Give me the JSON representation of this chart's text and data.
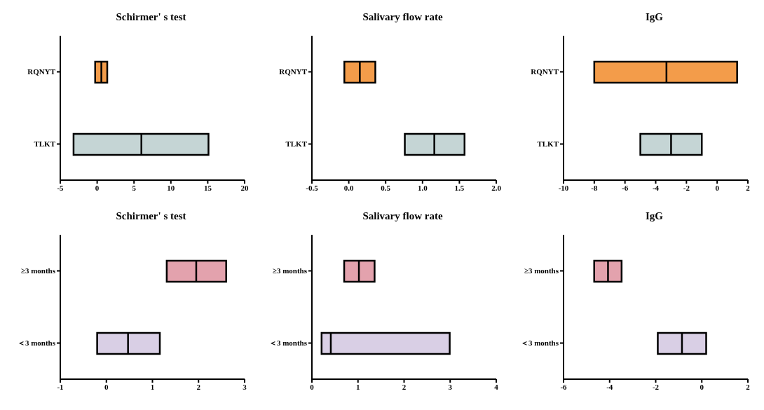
{
  "chart_data": [
    {
      "type": "box",
      "title": "Schirmer' s test",
      "orientation": "horizontal",
      "categories": [
        "RQNYT",
        "TLKT"
      ],
      "colors": [
        "#f39c4a",
        "#c5d5d5"
      ],
      "xlim": [
        -5,
        20
      ],
      "xticks": [
        -5,
        0,
        5,
        10,
        15,
        20
      ],
      "grid": false,
      "boxes": [
        {
          "low": -0.27,
          "q1": -0.27,
          "median": 0.57,
          "q3": 1.37,
          "high": 1.37
        },
        {
          "low": -3.2,
          "q1": -3.2,
          "median": 6.0,
          "q3": 15.1,
          "high": 15.1
        }
      ]
    },
    {
      "type": "box",
      "title": "Salivary flow rate",
      "orientation": "horizontal",
      "categories": [
        "RQNYT",
        "TLKT"
      ],
      "colors": [
        "#f39c4a",
        "#c5d5d5"
      ],
      "xlim": [
        -0.5,
        2.0
      ],
      "xticks": [
        {
          "value": -0.5,
          "label": "-0.5"
        },
        {
          "value": 0,
          "label": "0.0"
        },
        {
          "value": 0.5,
          "label": "0.5"
        },
        {
          "value": 1,
          "label": "1.0"
        },
        {
          "value": 1.5,
          "label": "1.5"
        },
        {
          "value": 2,
          "label": "2.0"
        }
      ],
      "grid": false,
      "boxes": [
        {
          "low": -0.06,
          "q1": -0.06,
          "median": 0.15,
          "q3": 0.36,
          "high": 0.36
        },
        {
          "low": 0.76,
          "q1": 0.76,
          "median": 1.16,
          "q3": 1.57,
          "high": 1.57
        }
      ]
    },
    {
      "type": "box",
      "title": "IgG",
      "orientation": "horizontal",
      "categories": [
        "RQNYT",
        "TLKT"
      ],
      "colors": [
        "#f39c4a",
        "#c5d5d5"
      ],
      "xlim": [
        -10,
        2
      ],
      "xticks": [
        -10,
        -8,
        -6,
        -4,
        -2,
        0,
        2
      ],
      "grid": false,
      "boxes": [
        {
          "low": -8.0,
          "q1": -8.0,
          "median": -3.3,
          "q3": 1.3,
          "high": 1.3
        },
        {
          "low": -5.0,
          "q1": -5.0,
          "median": -3.0,
          "q3": -1.0,
          "high": -1.0
        }
      ]
    },
    {
      "type": "box",
      "title": "Schirmer' s test",
      "orientation": "horizontal",
      "categories": [
        "≥3 months",
        "＜3 months"
      ],
      "colors": [
        "#e3a2ad",
        "#d9cfe5"
      ],
      "xlim": [
        -1,
        3
      ],
      "xticks": [
        -1,
        0,
        1,
        2,
        3
      ],
      "grid": false,
      "boxes": [
        {
          "low": 1.31,
          "q1": 1.31,
          "median": 1.95,
          "q3": 2.6,
          "high": 2.6
        },
        {
          "low": -0.2,
          "q1": -0.2,
          "median": 0.47,
          "q3": 1.16,
          "high": 1.16
        }
      ]
    },
    {
      "type": "box",
      "title": "Salivary flow rate",
      "orientation": "horizontal",
      "categories": [
        "≥3 months",
        "＜3 months"
      ],
      "colors": [
        "#e3a2ad",
        "#d9cfe5"
      ],
      "xlim": [
        0,
        4
      ],
      "xticks": [
        0,
        1,
        2,
        3,
        4
      ],
      "grid": false,
      "boxes": [
        {
          "low": 0.7,
          "q1": 0.7,
          "median": 1.02,
          "q3": 1.36,
          "high": 1.36
        },
        {
          "low": 0.21,
          "q1": 0.21,
          "median": 0.41,
          "q3": 2.99,
          "high": 2.99
        }
      ]
    },
    {
      "type": "box",
      "title": "IgG",
      "orientation": "horizontal",
      "categories": [
        "≥3 months",
        "＜3 months"
      ],
      "colors": [
        "#e3a2ad",
        "#d9cfe5"
      ],
      "xlim": [
        -6,
        2
      ],
      "xticks": [
        -6,
        -4,
        -2,
        0,
        2
      ],
      "grid": false,
      "boxes": [
        {
          "low": -4.67,
          "q1": -4.67,
          "median": -4.07,
          "q3": -3.48,
          "high": -3.48
        },
        {
          "low": -1.91,
          "q1": -1.91,
          "median": -0.86,
          "q3": 0.19,
          "high": 0.19
        }
      ]
    }
  ]
}
